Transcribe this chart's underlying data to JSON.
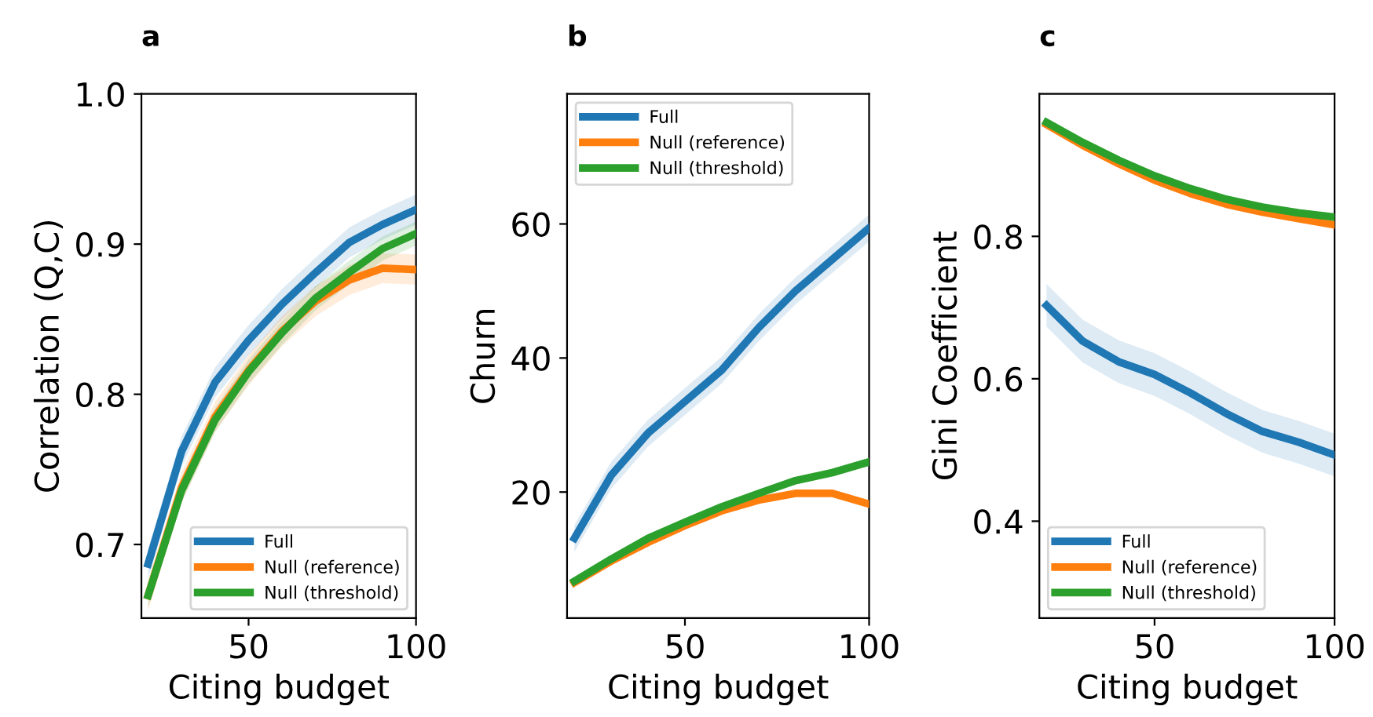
{
  "chart_data": [
    {
      "type": "line",
      "title": "a",
      "xlabel": "Citing budget",
      "ylabel": "Correlation (Q,C)",
      "xlim": [
        18,
        100
      ],
      "xticks": [
        50,
        100
      ],
      "ylim": [
        0.651,
        1.0
      ],
      "yticks": [
        0.7,
        0.8,
        0.9,
        {
          "value": 1.0,
          "label": "1.0"
        }
      ],
      "grid": false,
      "legend": "bottom right",
      "x": [
        20,
        30,
        40,
        50,
        60,
        70,
        80,
        90,
        100
      ],
      "series": [
        {
          "name": "Full",
          "color": "#1f77b4",
          "values": [
            0.687,
            0.762,
            0.808,
            0.836,
            0.86,
            0.881,
            0.901,
            0.913,
            0.923
          ],
          "lower": [
            0.677,
            0.752,
            0.798,
            0.826,
            0.85,
            0.871,
            0.891,
            0.903,
            0.913
          ],
          "upper": [
            0.697,
            0.772,
            0.818,
            0.846,
            0.87,
            0.891,
            0.911,
            0.923,
            0.933
          ]
        },
        {
          "name": "Null (reference)",
          "color": "#ff7f0e",
          "values": [
            0.666,
            0.738,
            0.785,
            0.816,
            0.842,
            0.862,
            0.876,
            0.884,
            0.883
          ],
          "lower": [
            0.656,
            0.728,
            0.775,
            0.806,
            0.832,
            0.852,
            0.866,
            0.874,
            0.873
          ],
          "upper": [
            0.676,
            0.748,
            0.795,
            0.826,
            0.852,
            0.872,
            0.886,
            0.894,
            0.893
          ]
        },
        {
          "name": "Null (threshold)",
          "color": "#2ca02c",
          "values": [
            0.666,
            0.736,
            0.783,
            0.815,
            0.841,
            0.864,
            0.881,
            0.897,
            0.907
          ],
          "lower": [
            0.658,
            0.728,
            0.775,
            0.807,
            0.833,
            0.856,
            0.873,
            0.889,
            0.899
          ],
          "upper": [
            0.674,
            0.744,
            0.791,
            0.823,
            0.849,
            0.872,
            0.889,
            0.905,
            0.915
          ]
        }
      ]
    },
    {
      "type": "line",
      "title": "b",
      "xlabel": "Citing budget",
      "ylabel": "Churn",
      "xlim": [
        18,
        100
      ],
      "xticks": [
        50,
        100
      ],
      "ylim": [
        1.2,
        79.4
      ],
      "yticks": [
        20,
        40,
        60
      ],
      "grid": false,
      "legend": "top left",
      "x": [
        20,
        30,
        40,
        50,
        60,
        70,
        80,
        90,
        100
      ],
      "series": [
        {
          "name": "Full",
          "color": "#1f77b4",
          "values": [
            13.1,
            22.5,
            28.8,
            33.5,
            38.2,
            44.5,
            50.0,
            54.7,
            59.4
          ],
          "lower": [
            11.1,
            20.5,
            26.8,
            31.5,
            36.2,
            42.5,
            48.0,
            52.7,
            57.4
          ],
          "upper": [
            15.1,
            24.5,
            30.8,
            35.5,
            40.2,
            46.5,
            52.0,
            56.7,
            61.4
          ]
        },
        {
          "name": "Null (reference)",
          "color": "#ff7f0e",
          "values": [
            6.5,
            9.7,
            12.5,
            15.0,
            17.2,
            18.8,
            19.8,
            19.8,
            18.2
          ]
        },
        {
          "name": "Null (threshold)",
          "color": "#2ca02c",
          "values": [
            6.7,
            10.0,
            13.1,
            15.5,
            17.8,
            19.8,
            21.7,
            22.9,
            24.5
          ]
        }
      ]
    },
    {
      "type": "line",
      "title": "c",
      "xlabel": "Citing budget",
      "ylabel": "Gini Coefficient",
      "xlim": [
        18,
        100
      ],
      "xticks": [
        50,
        100
      ],
      "ylim": [
        0.264,
        1.0
      ],
      "yticks": [
        0.4,
        0.6,
        0.8
      ],
      "grid": false,
      "legend": "bottom left",
      "x": [
        20,
        30,
        40,
        50,
        60,
        70,
        80,
        90,
        100
      ],
      "series": [
        {
          "name": "Full",
          "color": "#1f77b4",
          "values": [
            0.703,
            0.653,
            0.624,
            0.606,
            0.58,
            0.551,
            0.526,
            0.511,
            0.493
          ],
          "lower": [
            0.673,
            0.623,
            0.594,
            0.576,
            0.55,
            0.521,
            0.496,
            0.481,
            0.463
          ],
          "upper": [
            0.733,
            0.683,
            0.654,
            0.636,
            0.61,
            0.581,
            0.556,
            0.541,
            0.523
          ]
        },
        {
          "name": "Null (reference)",
          "color": "#ff7f0e",
          "values": [
            0.957,
            0.928,
            0.902,
            0.879,
            0.86,
            0.845,
            0.834,
            0.825,
            0.816
          ]
        },
        {
          "name": "Null (threshold)",
          "color": "#2ca02c",
          "values": [
            0.96,
            0.932,
            0.907,
            0.885,
            0.867,
            0.852,
            0.841,
            0.833,
            0.827
          ]
        }
      ]
    }
  ]
}
